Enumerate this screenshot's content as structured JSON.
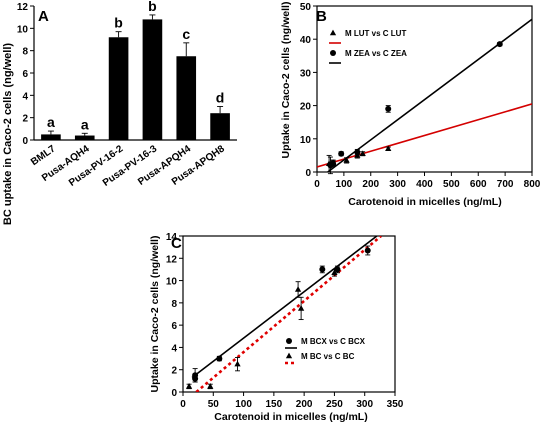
{
  "chart_data": [
    {
      "panel": "A",
      "type": "bar",
      "ylabel": "BC uptake in Caco-2 cells (ng/well)",
      "categories": [
        "BML7",
        "Pusa-AQH4",
        "Pusa-PV-16-2",
        "Pusa-PV-16-3",
        "Pusa-APQH4",
        "Pusa-APQH8"
      ],
      "values": [
        0.5,
        0.4,
        9.2,
        10.8,
        7.5,
        2.4
      ],
      "errors": [
        0.3,
        0.2,
        0.5,
        0.4,
        1.2,
        0.6
      ],
      "letters": [
        "a",
        "a",
        "b",
        "b",
        "c",
        "d"
      ],
      "ylim": [
        0,
        12
      ],
      "yticks": [
        "0",
        "2",
        "4",
        "6",
        "8",
        "10",
        "12"
      ],
      "bar_color": "#000000"
    },
    {
      "panel": "B",
      "type": "scatter",
      "xlabel": "Carotenoid in micelles (ng/mL)",
      "ylabel": "Uptake in Caco-2 cells (ng/well)",
      "xlim": [
        0,
        800
      ],
      "ylim": [
        0,
        50
      ],
      "xticks": [
        "0",
        "100",
        "200",
        "300",
        "400",
        "500",
        "600",
        "700",
        "800"
      ],
      "yticks": [
        "0",
        "10",
        "20",
        "30",
        "40",
        "50"
      ],
      "legend_position": "top-left",
      "series": [
        {
          "name": "M LUT vs C LUT",
          "marker": "triangle",
          "color": "#000000",
          "points": [
            [
              45,
              2.5
            ],
            [
              60,
              2.8
            ],
            [
              110,
              3.5
            ],
            [
              150,
              5.0
            ],
            [
              170,
              5.5
            ],
            [
              265,
              7.0
            ]
          ],
          "errors": [
            2.5,
            0.8,
            0.8,
            0.8,
            0.6,
            0.5
          ]
        },
        {
          "name": "M ZEA vs C ZEA",
          "marker": "circle",
          "color": "#000000",
          "points": [
            [
              50,
              2.0
            ],
            [
              60,
              2.5
            ],
            [
              90,
              5.5
            ],
            [
              150,
              6.0
            ],
            [
              265,
              19.0
            ],
            [
              680,
              38.5
            ]
          ],
          "errors": [
            2.5,
            0.8,
            0.6,
            0.8,
            1.0,
            0.5
          ]
        }
      ],
      "fit_lines": [
        {
          "series": "M LUT vs C LUT",
          "color": "#d40000",
          "x": [
            0,
            800
          ],
          "y": [
            1.5,
            20.5
          ]
        },
        {
          "series": "M ZEA vs C ZEA",
          "color": "#000000",
          "x": [
            40,
            800
          ],
          "y": [
            0,
            46
          ]
        }
      ]
    },
    {
      "panel": "C",
      "type": "scatter",
      "xlabel": "Carotenoid in micelles (ng/mL)",
      "ylabel": "Uptake in Caco-2 cells (ng/well)",
      "xlim": [
        0,
        350
      ],
      "ylim": [
        0,
        14
      ],
      "xticks": [
        "0",
        "50",
        "100",
        "150",
        "200",
        "250",
        "300",
        "350"
      ],
      "yticks": [
        "0",
        "2",
        "4",
        "6",
        "8",
        "10",
        "12",
        "14"
      ],
      "legend_position": "lower-right",
      "series": [
        {
          "name": "M BCX vs C BCX",
          "marker": "circle",
          "color": "#000000",
          "points": [
            [
              20,
              1.2
            ],
            [
              20,
              1.5
            ],
            [
              60,
              3.0
            ],
            [
              230,
              11.0
            ],
            [
              255,
              11.0
            ],
            [
              305,
              12.7
            ]
          ],
          "errors": [
            0.3,
            0.6,
            0.2,
            0.3,
            0.3,
            0.4
          ]
        },
        {
          "name": "M BC vs C BC",
          "marker": "triangle",
          "color": "#000000",
          "points": [
            [
              10,
              0.5
            ],
            [
              45,
              0.5
            ],
            [
              90,
              2.5
            ],
            [
              190,
              9.2
            ],
            [
              195,
              7.5
            ],
            [
              250,
              10.7
            ]
          ],
          "errors": [
            0.2,
            0.2,
            0.6,
            0.7,
            1.0,
            0.3
          ]
        }
      ],
      "fit_lines": [
        {
          "series": "M BCX vs C BCX",
          "color": "#000000",
          "dash": false,
          "x": [
            15,
            320
          ],
          "y": [
            1.3,
            14
          ]
        },
        {
          "series": "M BC vs C BC",
          "color": "#e00000",
          "dash": true,
          "x": [
            22,
            327
          ],
          "y": [
            0,
            14
          ]
        }
      ]
    }
  ]
}
